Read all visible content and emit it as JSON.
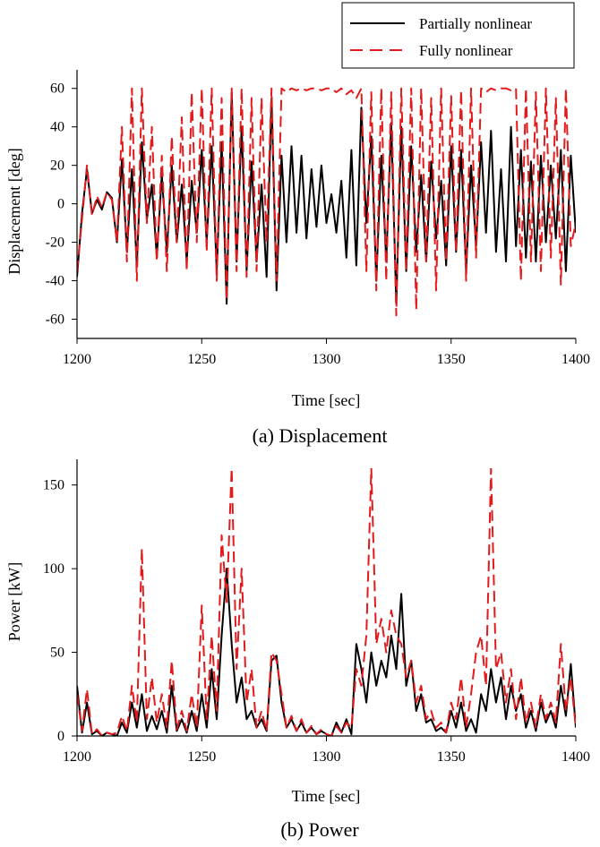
{
  "legend": {
    "entries": [
      {
        "label": "Partially nonlinear",
        "color": "#000000",
        "dash": "solid"
      },
      {
        "label": "Fully nonlinear",
        "color": "#e31a1c",
        "dash": "dashed"
      }
    ],
    "placement": "top-right"
  },
  "chart_data": [
    {
      "type": "line",
      "caption": "(a) Displacement",
      "xlabel": "Time [sec]",
      "ylabel": "Displacement [deg]",
      "xlim": [
        1200,
        1400
      ],
      "ylim": [
        -70,
        65
      ],
      "xticks": [
        1200,
        1250,
        1300,
        1350,
        1400
      ],
      "yticks": [
        -60,
        -40,
        -20,
        0,
        20,
        40,
        60
      ],
      "grid": false,
      "series": [
        {
          "name": "Partially nonlinear",
          "color": "#000000",
          "style": "solid",
          "x": [
            1200,
            1202,
            1204,
            1206,
            1208,
            1210,
            1212,
            1214,
            1216,
            1218,
            1220,
            1222,
            1224,
            1226,
            1228,
            1230,
            1232,
            1234,
            1236,
            1238,
            1240,
            1242,
            1244,
            1246,
            1248,
            1250,
            1252,
            1254,
            1256,
            1258,
            1260,
            1262,
            1264,
            1266,
            1268,
            1270,
            1272,
            1274,
            1276,
            1278,
            1280,
            1282,
            1284,
            1286,
            1288,
            1290,
            1292,
            1294,
            1296,
            1298,
            1300,
            1302,
            1304,
            1306,
            1308,
            1310,
            1312,
            1314,
            1316,
            1318,
            1320,
            1322,
            1324,
            1326,
            1328,
            1330,
            1332,
            1334,
            1336,
            1338,
            1340,
            1342,
            1344,
            1346,
            1348,
            1350,
            1352,
            1354,
            1356,
            1358,
            1360,
            1362,
            1364,
            1366,
            1368,
            1370,
            1372,
            1374,
            1376,
            1378,
            1380,
            1382,
            1384,
            1386,
            1388,
            1390,
            1392,
            1394,
            1396,
            1398,
            1400
          ],
          "y": [
            -38,
            -5,
            18,
            -5,
            2,
            -3,
            6,
            3,
            -20,
            23,
            -25,
            18,
            -32,
            32,
            -8,
            10,
            -28,
            15,
            -25,
            20,
            -20,
            10,
            -30,
            12,
            -15,
            28,
            -20,
            30,
            -35,
            32,
            -52,
            58,
            -30,
            40,
            -35,
            22,
            -30,
            10,
            -38,
            55,
            -45,
            25,
            -20,
            30,
            -15,
            25,
            -18,
            18,
            -12,
            20,
            -10,
            5,
            -15,
            12,
            -28,
            28,
            -32,
            50,
            -10,
            35,
            -40,
            25,
            -30,
            42,
            -52,
            40,
            -35,
            30,
            -25,
            15,
            -30,
            22,
            -18,
            12,
            -32,
            30,
            -25,
            28,
            -35,
            20,
            -22,
            32,
            -15,
            38,
            -25,
            18,
            -30,
            40,
            -22,
            28,
            -28,
            22,
            -30,
            25,
            -20,
            20,
            -18,
            28,
            -35,
            25,
            -15
          ]
        },
        {
          "name": "Fully nonlinear",
          "color": "#e31a1c",
          "style": "dashed",
          "x": [
            1200,
            1202,
            1204,
            1206,
            1208,
            1210,
            1212,
            1214,
            1216,
            1218,
            1220,
            1222,
            1224,
            1226,
            1228,
            1230,
            1232,
            1234,
            1236,
            1238,
            1240,
            1242,
            1244,
            1246,
            1248,
            1250,
            1252,
            1254,
            1256,
            1258,
            1260,
            1262,
            1264,
            1266,
            1268,
            1270,
            1272,
            1274,
            1276,
            1278,
            1280,
            1282,
            1284,
            1286,
            1288,
            1290,
            1292,
            1294,
            1296,
            1298,
            1300,
            1302,
            1304,
            1306,
            1308,
            1310,
            1312,
            1314,
            1316,
            1318,
            1320,
            1322,
            1324,
            1326,
            1328,
            1330,
            1332,
            1334,
            1336,
            1338,
            1340,
            1342,
            1344,
            1346,
            1348,
            1350,
            1352,
            1354,
            1356,
            1358,
            1360,
            1362,
            1364,
            1366,
            1368,
            1370,
            1372,
            1374,
            1376,
            1378,
            1380,
            1382,
            1384,
            1386,
            1388,
            1390,
            1392,
            1394,
            1396,
            1398,
            1400
          ],
          "y": [
            -35,
            -8,
            20,
            -6,
            4,
            -2,
            6,
            2,
            -20,
            40,
            -30,
            60,
            -40,
            60,
            -10,
            40,
            -30,
            25,
            -35,
            35,
            -20,
            45,
            -35,
            58,
            -20,
            60,
            -25,
            60,
            -40,
            55,
            -50,
            60,
            -35,
            60,
            -38,
            55,
            -35,
            55,
            -20,
            60,
            -40,
            60,
            58,
            60,
            59,
            60,
            59,
            60,
            60,
            59,
            60,
            60,
            58,
            60,
            57,
            59,
            55,
            60,
            -35,
            58,
            -45,
            60,
            -40,
            58,
            -58,
            60,
            -35,
            60,
            -55,
            60,
            -30,
            55,
            -45,
            60,
            -30,
            56,
            -25,
            59,
            -40,
            60,
            -28,
            60,
            58,
            60,
            59,
            60,
            60,
            59,
            60,
            -40,
            60,
            -30,
            58,
            -35,
            60,
            -28,
            55,
            -42,
            60,
            -22,
            -10
          ]
        }
      ]
    },
    {
      "type": "line",
      "caption": "(b) Power",
      "xlabel": "Time [sec]",
      "ylabel": "Power [kW]",
      "xlim": [
        1200,
        1400
      ],
      "ylim": [
        0,
        160
      ],
      "xticks": [
        1200,
        1250,
        1300,
        1350,
        1400
      ],
      "yticks": [
        0,
        50,
        100,
        150
      ],
      "grid": false,
      "series": [
        {
          "name": "Partially nonlinear",
          "color": "#000000",
          "style": "solid",
          "x": [
            1200,
            1202,
            1204,
            1206,
            1208,
            1210,
            1212,
            1214,
            1216,
            1218,
            1220,
            1222,
            1224,
            1226,
            1228,
            1230,
            1232,
            1234,
            1236,
            1238,
            1240,
            1242,
            1244,
            1246,
            1248,
            1250,
            1252,
            1254,
            1256,
            1258,
            1260,
            1262,
            1264,
            1266,
            1268,
            1270,
            1272,
            1274,
            1276,
            1278,
            1280,
            1282,
            1284,
            1286,
            1288,
            1290,
            1292,
            1294,
            1296,
            1298,
            1300,
            1302,
            1304,
            1306,
            1308,
            1310,
            1312,
            1314,
            1316,
            1318,
            1320,
            1322,
            1324,
            1326,
            1328,
            1330,
            1332,
            1334,
            1336,
            1338,
            1340,
            1342,
            1344,
            1346,
            1348,
            1350,
            1352,
            1354,
            1356,
            1358,
            1360,
            1362,
            1364,
            1366,
            1368,
            1370,
            1372,
            1374,
            1376,
            1378,
            1380,
            1382,
            1384,
            1386,
            1388,
            1390,
            1392,
            1394,
            1396,
            1398,
            1400
          ],
          "y": [
            30,
            2,
            20,
            1,
            3,
            0,
            2,
            1,
            0,
            8,
            2,
            20,
            5,
            25,
            3,
            12,
            4,
            15,
            2,
            30,
            3,
            10,
            2,
            15,
            3,
            25,
            5,
            40,
            10,
            60,
            100,
            55,
            20,
            35,
            10,
            15,
            5,
            10,
            3,
            45,
            48,
            20,
            5,
            10,
            3,
            8,
            2,
            5,
            1,
            3,
            1,
            0,
            8,
            2,
            10,
            1,
            55,
            40,
            20,
            50,
            30,
            45,
            35,
            60,
            40,
            85,
            30,
            45,
            15,
            25,
            8,
            10,
            3,
            5,
            2,
            15,
            5,
            20,
            3,
            10,
            2,
            25,
            15,
            40,
            20,
            35,
            10,
            30,
            15,
            25,
            5,
            15,
            3,
            20,
            8,
            15,
            5,
            30,
            12,
            43,
            5
          ]
        },
        {
          "name": "Fully nonlinear",
          "color": "#e31a1c",
          "style": "dashed",
          "x": [
            1200,
            1202,
            1204,
            1206,
            1208,
            1210,
            1212,
            1214,
            1216,
            1218,
            1220,
            1222,
            1224,
            1226,
            1228,
            1230,
            1232,
            1234,
            1236,
            1238,
            1240,
            1242,
            1244,
            1246,
            1248,
            1250,
            1252,
            1254,
            1256,
            1258,
            1260,
            1262,
            1264,
            1266,
            1268,
            1270,
            1272,
            1274,
            1276,
            1278,
            1280,
            1282,
            1284,
            1286,
            1288,
            1290,
            1292,
            1294,
            1296,
            1298,
            1300,
            1302,
            1304,
            1306,
            1308,
            1310,
            1312,
            1314,
            1316,
            1318,
            1320,
            1322,
            1324,
            1326,
            1328,
            1330,
            1332,
            1334,
            1336,
            1338,
            1340,
            1342,
            1344,
            1346,
            1348,
            1350,
            1352,
            1354,
            1356,
            1358,
            1360,
            1362,
            1364,
            1366,
            1368,
            1370,
            1372,
            1374,
            1376,
            1378,
            1380,
            1382,
            1384,
            1386,
            1388,
            1390,
            1392,
            1394,
            1396,
            1398,
            1400
          ],
          "y": [
            25,
            3,
            28,
            1,
            4,
            0,
            2,
            1,
            2,
            12,
            3,
            30,
            8,
            112,
            10,
            35,
            8,
            25,
            5,
            45,
            4,
            15,
            3,
            25,
            5,
            78,
            10,
            60,
            15,
            120,
            80,
            160,
            40,
            100,
            20,
            40,
            5,
            15,
            3,
            50,
            45,
            25,
            5,
            12,
            3,
            10,
            2,
            6,
            1,
            4,
            1,
            0,
            6,
            2,
            8,
            5,
            40,
            30,
            60,
            160,
            55,
            70,
            50,
            75,
            60,
            55,
            35,
            45,
            20,
            30,
            10,
            15,
            5,
            8,
            2,
            20,
            10,
            35,
            5,
            25,
            50,
            60,
            30,
            160,
            40,
            50,
            20,
            40,
            10,
            35,
            8,
            20,
            5,
            25,
            10,
            20,
            8,
            55,
            15,
            35,
            5
          ]
        }
      ]
    }
  ]
}
